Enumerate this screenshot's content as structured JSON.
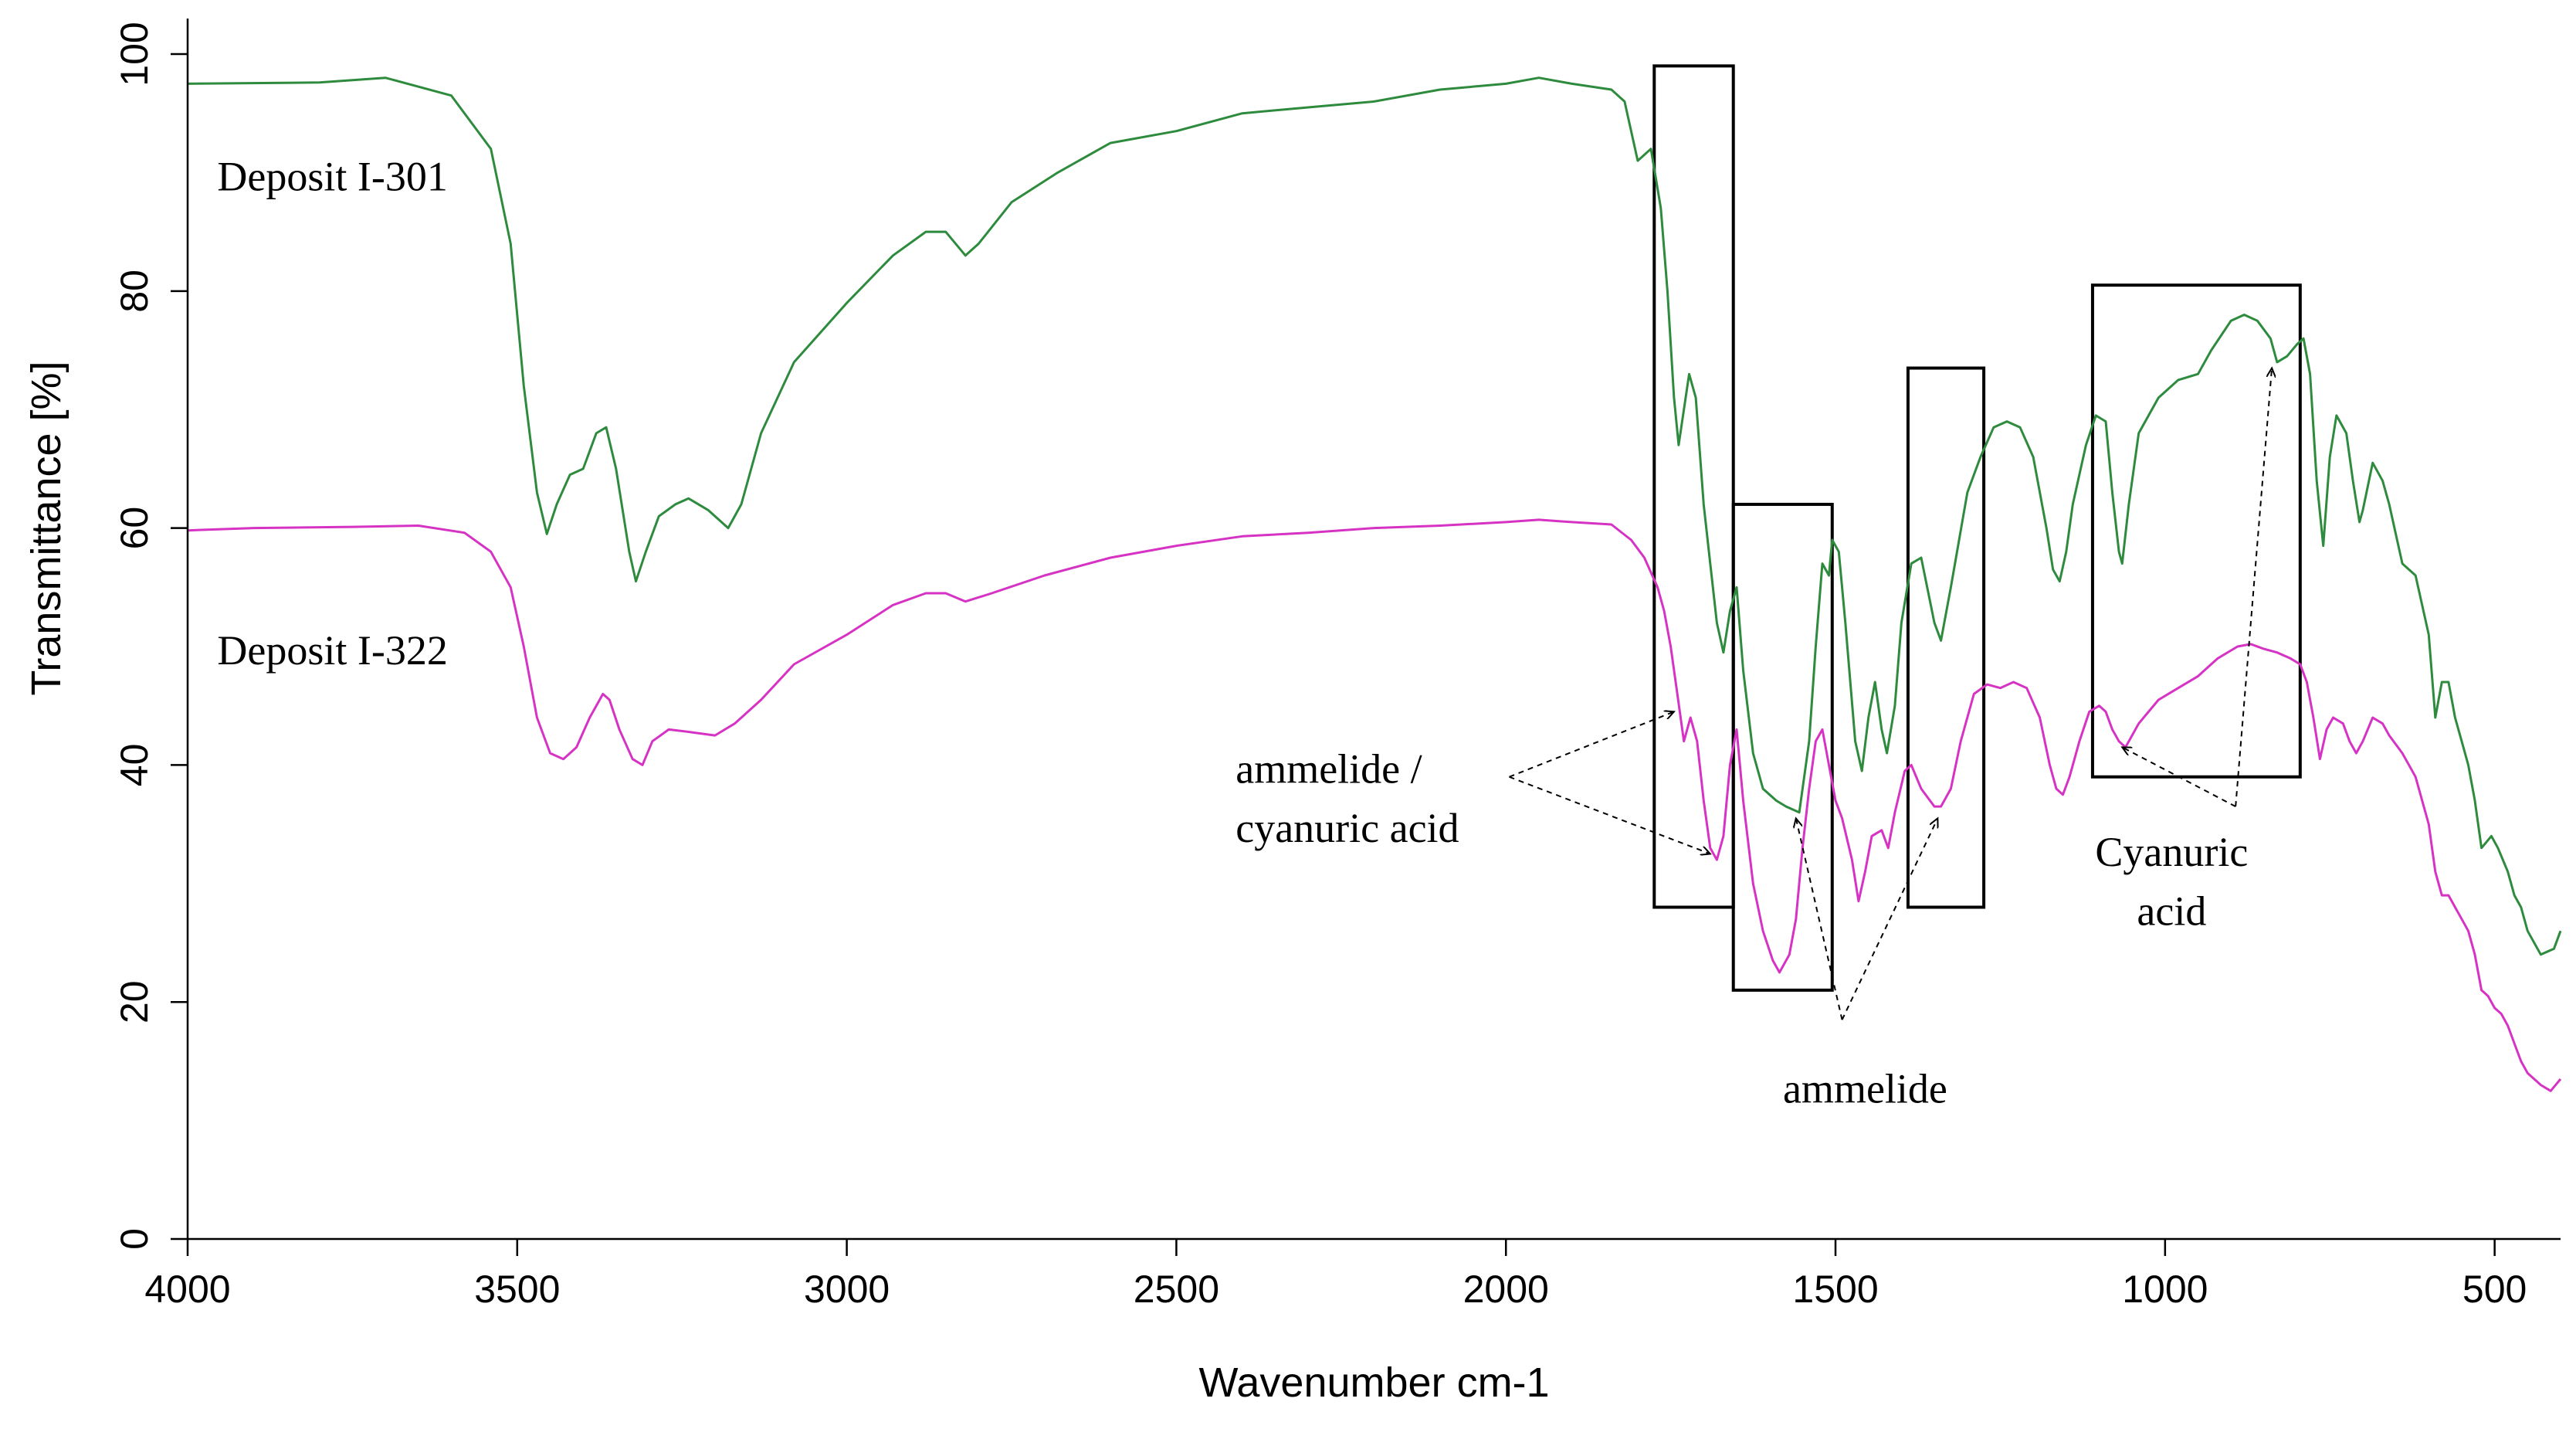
{
  "chart_data": {
    "type": "line",
    "xlabel": "Wavenumber cm-1",
    "ylabel": "Transmittance [%]",
    "xlim": [
      4000,
      400
    ],
    "ylim": [
      0,
      103
    ],
    "x_ticks": [
      4000,
      3500,
      3000,
      2500,
      2000,
      1500,
      1000,
      500
    ],
    "y_ticks": [
      0,
      20,
      40,
      60,
      80,
      100
    ],
    "grid": false,
    "legend": "none",
    "series": [
      {
        "name": "Deposit I-301",
        "color": "#2e8b3e",
        "points": [
          [
            4000,
            97.5
          ],
          [
            3800,
            97.6
          ],
          [
            3700,
            98.0
          ],
          [
            3600,
            96.5
          ],
          [
            3540,
            92
          ],
          [
            3510,
            84
          ],
          [
            3490,
            72
          ],
          [
            3470,
            63
          ],
          [
            3455,
            59.5
          ],
          [
            3440,
            62
          ],
          [
            3420,
            64.5
          ],
          [
            3400,
            65
          ],
          [
            3380,
            68
          ],
          [
            3365,
            68.5
          ],
          [
            3350,
            65
          ],
          [
            3330,
            58
          ],
          [
            3320,
            55.5
          ],
          [
            3305,
            58
          ],
          [
            3285,
            61
          ],
          [
            3260,
            62
          ],
          [
            3240,
            62.5
          ],
          [
            3210,
            61.5
          ],
          [
            3180,
            60
          ],
          [
            3160,
            62
          ],
          [
            3130,
            68
          ],
          [
            3080,
            74
          ],
          [
            3000,
            79
          ],
          [
            2930,
            83
          ],
          [
            2880,
            85
          ],
          [
            2850,
            85
          ],
          [
            2820,
            83
          ],
          [
            2800,
            84
          ],
          [
            2750,
            87.5
          ],
          [
            2680,
            90
          ],
          [
            2600,
            92.5
          ],
          [
            2500,
            93.5
          ],
          [
            2400,
            95
          ],
          [
            2300,
            95.5
          ],
          [
            2200,
            96
          ],
          [
            2100,
            97
          ],
          [
            2000,
            97.5
          ],
          [
            1950,
            98
          ],
          [
            1900,
            97.5
          ],
          [
            1840,
            97
          ],
          [
            1820,
            96
          ],
          [
            1800,
            91
          ],
          [
            1790,
            91.5
          ],
          [
            1780,
            92
          ],
          [
            1765,
            87
          ],
          [
            1755,
            80
          ],
          [
            1745,
            71
          ],
          [
            1738,
            67
          ],
          [
            1730,
            70
          ],
          [
            1722,
            73
          ],
          [
            1712,
            71
          ],
          [
            1700,
            62
          ],
          [
            1690,
            57
          ],
          [
            1680,
            52
          ],
          [
            1670,
            49.5
          ],
          [
            1660,
            53
          ],
          [
            1650,
            55
          ],
          [
            1640,
            48
          ],
          [
            1625,
            41
          ],
          [
            1610,
            38
          ],
          [
            1590,
            37
          ],
          [
            1575,
            36.5
          ],
          [
            1555,
            36
          ],
          [
            1540,
            42
          ],
          [
            1530,
            50
          ],
          [
            1520,
            57
          ],
          [
            1510,
            56
          ],
          [
            1505,
            59
          ],
          [
            1495,
            58
          ],
          [
            1485,
            52
          ],
          [
            1470,
            42
          ],
          [
            1460,
            39.5
          ],
          [
            1450,
            44
          ],
          [
            1440,
            47
          ],
          [
            1430,
            43
          ],
          [
            1422,
            41
          ],
          [
            1410,
            45
          ],
          [
            1400,
            52
          ],
          [
            1385,
            57
          ],
          [
            1370,
            57.5
          ],
          [
            1350,
            52
          ],
          [
            1340,
            50.5
          ],
          [
            1325,
            55
          ],
          [
            1300,
            63
          ],
          [
            1280,
            66
          ],
          [
            1260,
            68.5
          ],
          [
            1240,
            69
          ],
          [
            1220,
            68.5
          ],
          [
            1200,
            66
          ],
          [
            1180,
            60
          ],
          [
            1170,
            56.5
          ],
          [
            1160,
            55.5
          ],
          [
            1150,
            58
          ],
          [
            1140,
            62
          ],
          [
            1120,
            67
          ],
          [
            1105,
            69.5
          ],
          [
            1090,
            69
          ],
          [
            1080,
            63
          ],
          [
            1070,
            58
          ],
          [
            1065,
            57
          ],
          [
            1055,
            62
          ],
          [
            1040,
            68
          ],
          [
            1010,
            71
          ],
          [
            980,
            72.5
          ],
          [
            950,
            73
          ],
          [
            930,
            75
          ],
          [
            900,
            77.5
          ],
          [
            880,
            78
          ],
          [
            860,
            77.5
          ],
          [
            840,
            76
          ],
          [
            830,
            74
          ],
          [
            815,
            74.5
          ],
          [
            800,
            75.5
          ],
          [
            790,
            76
          ],
          [
            780,
            73
          ],
          [
            770,
            64
          ],
          [
            760,
            58.5
          ],
          [
            750,
            66
          ],
          [
            740,
            69.5
          ],
          [
            725,
            68
          ],
          [
            715,
            64
          ],
          [
            705,
            60.5
          ],
          [
            700,
            61.5
          ],
          [
            685,
            65.5
          ],
          [
            670,
            64
          ],
          [
            660,
            62
          ],
          [
            640,
            57
          ],
          [
            620,
            56
          ],
          [
            600,
            51
          ],
          [
            590,
            44
          ],
          [
            580,
            47
          ],
          [
            570,
            47
          ],
          [
            560,
            44
          ],
          [
            550,
            42
          ],
          [
            540,
            40
          ],
          [
            530,
            37
          ],
          [
            520,
            33
          ],
          [
            505,
            34
          ],
          [
            495,
            33
          ],
          [
            480,
            31
          ],
          [
            470,
            29
          ],
          [
            460,
            28
          ],
          [
            450,
            26
          ],
          [
            430,
            24
          ],
          [
            410,
            24.5
          ],
          [
            400,
            26
          ]
        ]
      },
      {
        "name": "Deposit I-322",
        "color": "#d633c4",
        "points": [
          [
            4000,
            59.8
          ],
          [
            3900,
            60.0
          ],
          [
            3750,
            60.1
          ],
          [
            3650,
            60.2
          ],
          [
            3580,
            59.6
          ],
          [
            3540,
            58
          ],
          [
            3510,
            55
          ],
          [
            3490,
            50
          ],
          [
            3470,
            44
          ],
          [
            3450,
            41
          ],
          [
            3430,
            40.5
          ],
          [
            3410,
            41.5
          ],
          [
            3390,
            44
          ],
          [
            3370,
            46
          ],
          [
            3360,
            45.5
          ],
          [
            3345,
            43
          ],
          [
            3325,
            40.5
          ],
          [
            3310,
            40
          ],
          [
            3295,
            42
          ],
          [
            3270,
            43
          ],
          [
            3240,
            42.8
          ],
          [
            3200,
            42.5
          ],
          [
            3170,
            43.5
          ],
          [
            3130,
            45.5
          ],
          [
            3080,
            48.5
          ],
          [
            3000,
            51
          ],
          [
            2930,
            53.5
          ],
          [
            2880,
            54.5
          ],
          [
            2850,
            54.5
          ],
          [
            2820,
            53.8
          ],
          [
            2780,
            54.5
          ],
          [
            2700,
            56
          ],
          [
            2600,
            57.5
          ],
          [
            2500,
            58.5
          ],
          [
            2400,
            59.3
          ],
          [
            2300,
            59.6
          ],
          [
            2200,
            60
          ],
          [
            2100,
            60.2
          ],
          [
            2000,
            60.5
          ],
          [
            1950,
            60.7
          ],
          [
            1900,
            60.5
          ],
          [
            1840,
            60.3
          ],
          [
            1810,
            59
          ],
          [
            1790,
            57.5
          ],
          [
            1770,
            55
          ],
          [
            1760,
            53
          ],
          [
            1750,
            50
          ],
          [
            1740,
            46
          ],
          [
            1730,
            42
          ],
          [
            1720,
            44
          ],
          [
            1710,
            42
          ],
          [
            1700,
            37
          ],
          [
            1690,
            33
          ],
          [
            1680,
            32
          ],
          [
            1670,
            34
          ],
          [
            1660,
            40
          ],
          [
            1650,
            43
          ],
          [
            1640,
            37
          ],
          [
            1625,
            30
          ],
          [
            1610,
            26
          ],
          [
            1595,
            23.5
          ],
          [
            1585,
            22.5
          ],
          [
            1570,
            24
          ],
          [
            1560,
            27
          ],
          [
            1550,
            33
          ],
          [
            1540,
            38
          ],
          [
            1530,
            42
          ],
          [
            1520,
            43
          ],
          [
            1510,
            40
          ],
          [
            1500,
            37
          ],
          [
            1490,
            35.5
          ],
          [
            1475,
            32
          ],
          [
            1465,
            28.5
          ],
          [
            1455,
            31
          ],
          [
            1445,
            34
          ],
          [
            1430,
            34.5
          ],
          [
            1420,
            33
          ],
          [
            1410,
            36
          ],
          [
            1395,
            39.5
          ],
          [
            1385,
            40
          ],
          [
            1370,
            38
          ],
          [
            1350,
            36.5
          ],
          [
            1340,
            36.5
          ],
          [
            1325,
            38
          ],
          [
            1310,
            42
          ],
          [
            1290,
            46
          ],
          [
            1270,
            46.8
          ],
          [
            1250,
            46.5
          ],
          [
            1230,
            47
          ],
          [
            1210,
            46.5
          ],
          [
            1190,
            44
          ],
          [
            1175,
            40
          ],
          [
            1165,
            38
          ],
          [
            1155,
            37.5
          ],
          [
            1145,
            39
          ],
          [
            1130,
            42
          ],
          [
            1115,
            44.5
          ],
          [
            1100,
            45
          ],
          [
            1090,
            44.5
          ],
          [
            1080,
            43
          ],
          [
            1070,
            42
          ],
          [
            1060,
            41.5
          ],
          [
            1040,
            43.5
          ],
          [
            1010,
            45.5
          ],
          [
            980,
            46.5
          ],
          [
            950,
            47.5
          ],
          [
            920,
            49
          ],
          [
            890,
            50
          ],
          [
            870,
            50.2
          ],
          [
            850,
            49.8
          ],
          [
            830,
            49.5
          ],
          [
            810,
            49
          ],
          [
            795,
            48.5
          ],
          [
            785,
            47
          ],
          [
            775,
            44
          ],
          [
            765,
            40.5
          ],
          [
            755,
            43
          ],
          [
            745,
            44
          ],
          [
            730,
            43.5
          ],
          [
            720,
            42
          ],
          [
            710,
            41
          ],
          [
            700,
            42
          ],
          [
            685,
            44
          ],
          [
            670,
            43.5
          ],
          [
            660,
            42.5
          ],
          [
            640,
            41
          ],
          [
            620,
            39
          ],
          [
            600,
            35
          ],
          [
            590,
            31
          ],
          [
            580,
            29
          ],
          [
            570,
            29
          ],
          [
            560,
            28
          ],
          [
            550,
            27
          ],
          [
            540,
            26
          ],
          [
            530,
            24
          ],
          [
            520,
            21
          ],
          [
            510,
            20.5
          ],
          [
            500,
            19.5
          ],
          [
            490,
            19
          ],
          [
            480,
            18
          ],
          [
            470,
            16.5
          ],
          [
            460,
            15
          ],
          [
            450,
            14
          ],
          [
            430,
            13
          ],
          [
            415,
            12.5
          ],
          [
            400,
            13.5
          ]
        ]
      }
    ],
    "annotations": [
      {
        "lines": [
          "ammelide /",
          "cyanuric acid"
        ]
      },
      {
        "lines": [
          "ammelide"
        ]
      },
      {
        "lines": [
          "Cyanuric",
          "acid"
        ]
      }
    ],
    "boxes": [
      {
        "x": [
          1775,
          1655
        ],
        "y": [
          28,
          99
        ]
      },
      {
        "x": [
          1655,
          1505
        ],
        "y": [
          21,
          62
        ]
      },
      {
        "x": [
          1390,
          1275
        ],
        "y": [
          28,
          73.5
        ]
      },
      {
        "x": [
          1110,
          795
        ],
        "y": [
          39,
          80.5
        ]
      }
    ]
  }
}
